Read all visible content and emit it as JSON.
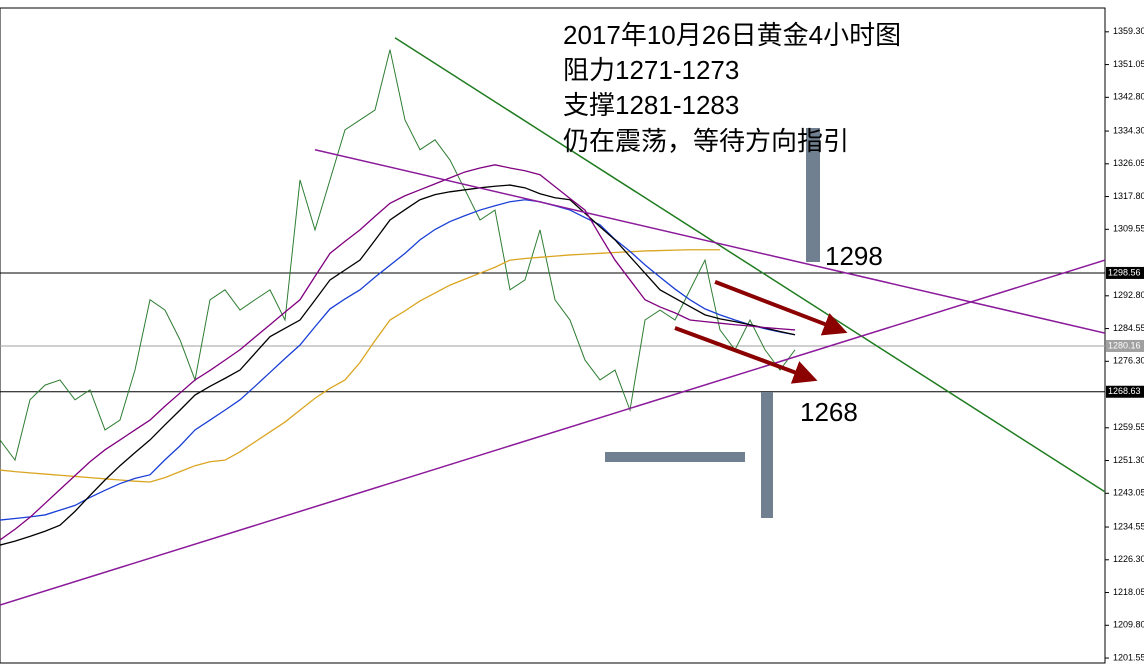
{
  "chart_data": {
    "type": "line",
    "annotations": [
      "2017年10月26日黄金4小时图",
      "阻力1271-1273",
      "支撑1281-1283",
      "仍在震荡，等待方向指引"
    ],
    "level_notes": [
      "1298",
      "1268"
    ],
    "ylim": [
      1200.3,
      1365.3
    ],
    "yticks": [
      {
        "value": 1359.3,
        "label": "1359.30"
      },
      {
        "value": 1351.05,
        "label": "1351.05"
      },
      {
        "value": 1342.8,
        "label": "1342.80"
      },
      {
        "value": 1334.3,
        "label": "1334.30"
      },
      {
        "value": 1326.05,
        "label": "1326.05"
      },
      {
        "value": 1317.8,
        "label": "1317.80"
      },
      {
        "value": 1309.55,
        "label": "1309.55"
      },
      {
        "value": 1292.8,
        "label": "1292.80"
      },
      {
        "value": 1284.55,
        "label": "1284.55"
      },
      {
        "value": 1276.3,
        "label": "1276.30"
      },
      {
        "value": 1259.55,
        "label": "1259.55"
      },
      {
        "value": 1251.3,
        "label": "1251.30"
      },
      {
        "value": 1243.05,
        "label": "1243.05"
      },
      {
        "value": 1234.55,
        "label": "1234.55"
      },
      {
        "value": 1226.3,
        "label": "1226.30"
      },
      {
        "value": 1218.05,
        "label": "1218.05"
      },
      {
        "value": 1209.8,
        "label": "1209.80"
      },
      {
        "value": 1201.55,
        "label": "1201.55"
      }
    ],
    "levels": [
      {
        "value": 1298.56,
        "color": "#000000"
      },
      {
        "value": 1280.16,
        "color": "#a0a0a0"
      },
      {
        "value": 1268.63,
        "color": "#000000"
      }
    ],
    "series": [
      {
        "color": "#2e7d32",
        "values": [
          1256.5,
          1251.4,
          1266.6,
          1270.3,
          1271.6,
          1266.6,
          1269.1,
          1259.0,
          1261.5,
          1274.1,
          1291.8,
          1289.2,
          1281.7,
          1271.6,
          1291.8,
          1294.3,
          1289.2,
          1291.8,
          1294.3,
          1286.7,
          1322.0,
          1309.4,
          1322.0,
          1334.6,
          1337.1,
          1339.6,
          1354.8,
          1337.1,
          1329.6,
          1332.1,
          1327.0,
          1319.5,
          1311.9,
          1314.4,
          1294.3,
          1296.8,
          1309.4,
          1291.8,
          1286.7,
          1276.6,
          1271.6,
          1274.1,
          1264.0,
          1286.7,
          1289.2,
          1286.7,
          1294.3,
          1301.8,
          1284.2,
          1279.2,
          1286.7,
          1279.2,
          1274.1,
          1279.2
        ]
      },
      {
        "color": "#daa520",
        "values": [
          1248.9,
          1248.5,
          1248.2,
          1247.9,
          1247.6,
          1247.3,
          1247.0,
          1246.7,
          1246.4,
          1246.1,
          1245.9,
          1247,
          1248.5,
          1250,
          1251,
          1251.4,
          1253.5,
          1256,
          1258.5,
          1261,
          1264,
          1267,
          1269.5,
          1271.6,
          1276,
          1281.5,
          1286.7,
          1289,
          1291.5,
          1293.5,
          1295.5,
          1297,
          1298.5,
          1300,
          1301.8,
          1302.2,
          1302.5,
          1302.8,
          1303.1,
          1303.3,
          1303.5,
          1303.7,
          1303.9,
          1304.1,
          1304.2,
          1304.3,
          1304.4,
          1304.4,
          1304.4,
          null,
          null,
          null,
          null,
          null
        ]
      },
      {
        "color": "#1a3fd6",
        "values": [
          1236.3,
          1236.7,
          1237.1,
          1237.6,
          1238.8,
          1240,
          1242,
          1243.8,
          1245.5,
          1246.8,
          1247.7,
          1251.5,
          1255,
          1259,
          1261.5,
          1264,
          1266.6,
          1270,
          1273.5,
          1277,
          1280.4,
          1285,
          1289.5,
          1292,
          1294.3,
          1297.5,
          1300.5,
          1303.5,
          1306.9,
          1309.5,
          1311.5,
          1313,
          1314.4,
          1315.5,
          1316.5,
          1317,
          1316.5,
          1315.5,
          1314.4,
          1312.5,
          1310.7,
          1307,
          1304,
          1300.6,
          1297.5,
          1294.5,
          1291.8,
          1289.5,
          1288,
          1286.7,
          1285.5,
          1284.5,
          1283.7,
          1283
        ]
      },
      {
        "color": "#000000",
        "values": [
          1230,
          1231,
          1232.2,
          1233.5,
          1235,
          1238.5,
          1242.5,
          1246.4,
          1250,
          1253.3,
          1256.5,
          1260.3,
          1264,
          1267.8,
          1270,
          1272,
          1274.1,
          1278.3,
          1282.5,
          1284.6,
          1286.7,
          1291.7,
          1296.8,
          1299.3,
          1301.8,
          1306.8,
          1311.9,
          1314.5,
          1317,
          1318.3,
          1319,
          1319.5,
          1320,
          1320.4,
          1320.7,
          1320,
          1318.5,
          1317.5,
          1317,
          1313.6,
          1310.2,
          1306.9,
          1302.7,
          1298.5,
          1294.3,
          1292.2,
          1290.1,
          1288,
          1287,
          1286.3,
          1285.5,
          1284.7,
          1283.8,
          1283
        ]
      },
      {
        "color": "#800080",
        "values": [
          1231.3,
          1234,
          1237,
          1240.5,
          1244,
          1247.5,
          1251,
          1254,
          1256.5,
          1259,
          1261.5,
          1265,
          1268.3,
          1271.6,
          1274,
          1276.6,
          1279.2,
          1282.4,
          1285.5,
          1288.7,
          1291.8,
          1297.7,
          1303.5,
          1306.5,
          1309.4,
          1312.8,
          1316.1,
          1318,
          1319.5,
          1321,
          1322.5,
          1324,
          1325,
          1325.8,
          1325,
          1324.3,
          1323.3,
          1320.3,
          1317.3,
          1314.4,
          1308,
          1301.8,
          1296.8,
          1291.8,
          1290,
          1288.5,
          1286.7,
          1286.3,
          1285.9,
          1285.5,
          1285.2,
          1284.8,
          1284.5,
          1284.2
        ]
      }
    ],
    "trendlines": [
      {
        "color": "#1e7b1e",
        "points": [
          [
            26.33,
            1357.8
          ],
          [
            73.67,
            1243.4
          ]
        ]
      },
      {
        "color": "#8b1a9b",
        "points": [
          [
            21,
            1329.6
          ],
          [
            73.67,
            1283.4
          ]
        ]
      },
      {
        "color": "#8b1a9b",
        "points": [
          [
            0,
            1214.9
          ],
          [
            73.67,
            1301.8
          ]
        ]
      }
    ],
    "arrows": [
      {
        "color": "#8b0000",
        "points": [
          [
            47.67,
            1296.3
          ],
          [
            56,
            1284.2
          ]
        ]
      },
      {
        "color": "#8b0000",
        "points": [
          [
            45,
            1284.7
          ],
          [
            54,
            1272.1
          ]
        ]
      }
    ]
  }
}
